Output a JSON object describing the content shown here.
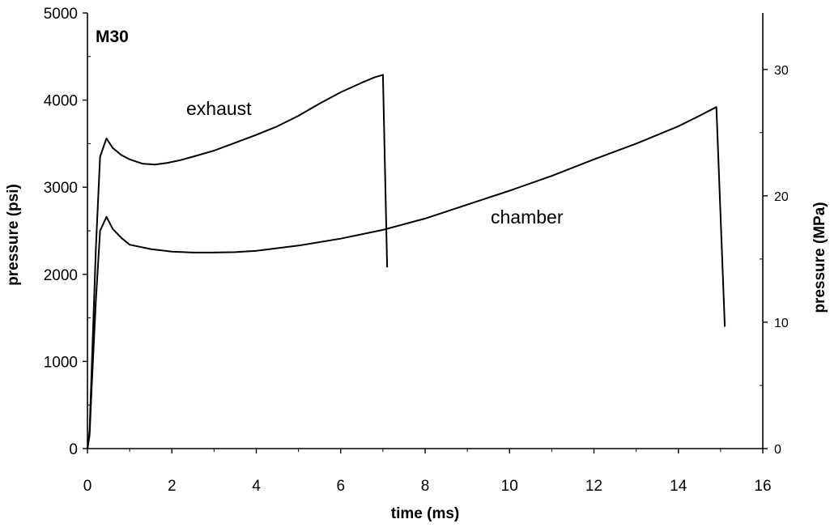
{
  "chart_data": {
    "type": "line",
    "title": "M30",
    "xlabel": "time (ms)",
    "ylabel": "pressure (psi)",
    "y2label": "pressure (MPa)",
    "xlim": [
      0,
      16
    ],
    "ylim": [
      0,
      5000
    ],
    "y2lim": [
      0,
      34.47
    ],
    "xticks": [
      "0",
      "2",
      "4",
      "6",
      "8",
      "10",
      "12",
      "14",
      "16"
    ],
    "yticks": [
      "0",
      "1000",
      "2000",
      "3000",
      "4000",
      "5000"
    ],
    "y2ticks": [
      "0",
      "10",
      "20",
      "30"
    ],
    "grid": false,
    "legend": "none",
    "series": [
      {
        "name": "exhaust",
        "color": "#000000",
        "x": [
          0,
          0.05,
          0.1,
          0.2,
          0.3,
          0.45,
          0.6,
          0.8,
          1.0,
          1.3,
          1.6,
          1.9,
          2.2,
          2.5,
          3.0,
          3.5,
          4.0,
          4.5,
          5.0,
          5.5,
          6.0,
          6.5,
          6.8,
          7.0,
          7.1
        ],
        "y": [
          0,
          200,
          900,
          2300,
          3350,
          3560,
          3450,
          3370,
          3320,
          3270,
          3260,
          3280,
          3310,
          3350,
          3420,
          3510,
          3600,
          3700,
          3820,
          3960,
          4090,
          4200,
          4260,
          4290,
          2080
        ]
      },
      {
        "name": "chamber",
        "color": "#000000",
        "x": [
          0,
          0.05,
          0.1,
          0.2,
          0.3,
          0.45,
          0.6,
          0.8,
          1.0,
          1.5,
          2.0,
          2.5,
          3.0,
          3.5,
          4.0,
          5.0,
          6.0,
          7.0,
          8.0,
          9.0,
          10.0,
          11.0,
          12.0,
          13.0,
          14.0,
          14.5,
          14.9,
          15.1
        ],
        "y": [
          0,
          150,
          700,
          1700,
          2500,
          2660,
          2520,
          2420,
          2340,
          2290,
          2260,
          2250,
          2250,
          2255,
          2270,
          2330,
          2410,
          2510,
          2640,
          2800,
          2960,
          3130,
          3320,
          3500,
          3700,
          3820,
          3920,
          1400
        ]
      }
    ],
    "annotations": [
      "exhaust",
      "chamber"
    ]
  }
}
